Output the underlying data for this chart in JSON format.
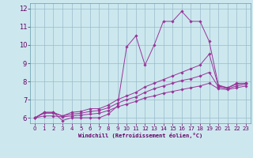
{
  "bg_color": "#cce8ee",
  "line_color": "#993399",
  "grid_color": "#99bbcc",
  "xlabel": "Windchill (Refroidissement éolien,°C)",
  "xlabel_color": "#660066",
  "tick_color": "#660066",
  "ylim": [
    5.7,
    12.3
  ],
  "xlim": [
    -0.5,
    23.5
  ],
  "yticks": [
    6,
    7,
    8,
    9,
    10,
    11,
    12
  ],
  "xticks": [
    0,
    1,
    2,
    3,
    4,
    5,
    6,
    7,
    8,
    9,
    10,
    11,
    12,
    13,
    14,
    15,
    16,
    17,
    18,
    19,
    20,
    21,
    22,
    23
  ],
  "series": [
    {
      "x": [
        0,
        1,
        2,
        3,
        4,
        5,
        6,
        7,
        8,
        9,
        10,
        11,
        12,
        13,
        14,
        15,
        16,
        17,
        18,
        19,
        20,
        21,
        22,
        23
      ],
      "y": [
        6.0,
        6.3,
        6.3,
        5.85,
        6.0,
        6.0,
        6.0,
        6.0,
        6.2,
        6.65,
        9.9,
        10.5,
        8.9,
        10.0,
        11.3,
        11.3,
        11.85,
        11.3,
        11.3,
        10.2,
        7.8,
        7.65,
        7.9,
        7.9
      ]
    },
    {
      "x": [
        0,
        1,
        2,
        3,
        4,
        5,
        6,
        7,
        8,
        9,
        10,
        11,
        12,
        13,
        14,
        15,
        16,
        17,
        18,
        19,
        20,
        21,
        22,
        23
      ],
      "y": [
        6.0,
        6.3,
        6.3,
        6.1,
        6.3,
        6.35,
        6.5,
        6.5,
        6.7,
        7.0,
        7.2,
        7.4,
        7.7,
        7.9,
        8.1,
        8.3,
        8.5,
        8.7,
        8.9,
        9.5,
        7.75,
        7.65,
        7.85,
        7.9
      ]
    },
    {
      "x": [
        0,
        1,
        2,
        3,
        4,
        5,
        6,
        7,
        8,
        9,
        10,
        11,
        12,
        13,
        14,
        15,
        16,
        17,
        18,
        19,
        20,
        21,
        22,
        23
      ],
      "y": [
        6.0,
        6.25,
        6.25,
        6.1,
        6.2,
        6.25,
        6.35,
        6.4,
        6.55,
        6.8,
        7.0,
        7.15,
        7.4,
        7.6,
        7.75,
        7.9,
        8.05,
        8.15,
        8.3,
        8.5,
        7.7,
        7.6,
        7.75,
        7.85
      ]
    },
    {
      "x": [
        0,
        1,
        2,
        3,
        4,
        5,
        6,
        7,
        8,
        9,
        10,
        11,
        12,
        13,
        14,
        15,
        16,
        17,
        18,
        19,
        20,
        21,
        22,
        23
      ],
      "y": [
        6.0,
        6.1,
        6.1,
        6.05,
        6.1,
        6.15,
        6.2,
        6.25,
        6.4,
        6.6,
        6.75,
        6.9,
        7.1,
        7.2,
        7.35,
        7.45,
        7.55,
        7.65,
        7.75,
        7.9,
        7.6,
        7.55,
        7.65,
        7.75
      ]
    }
  ]
}
